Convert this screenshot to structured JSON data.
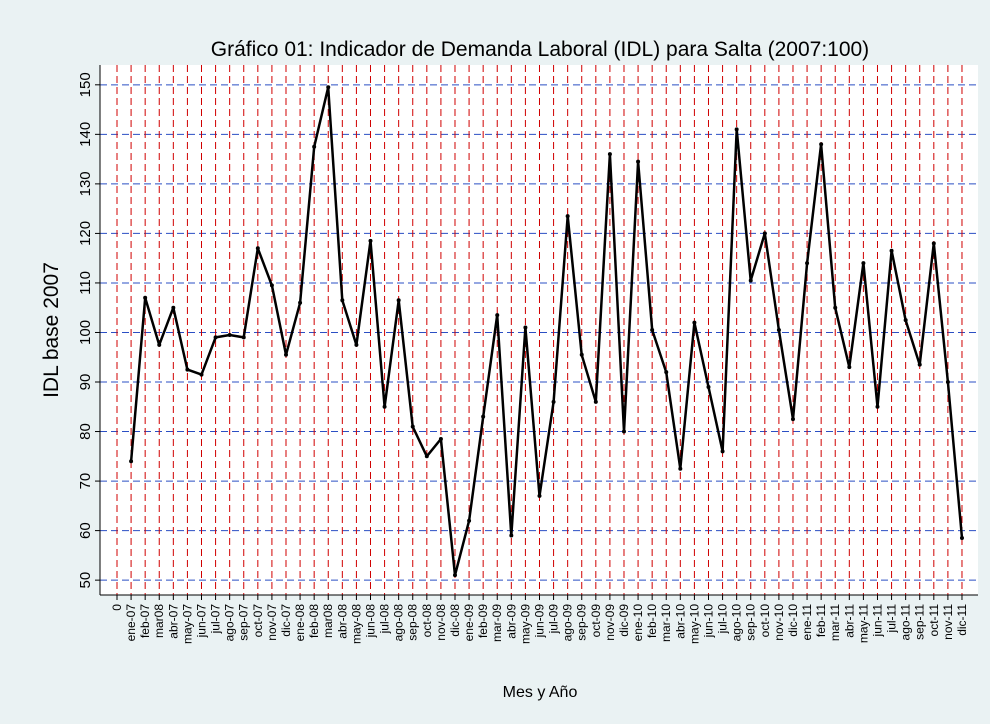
{
  "chart_data": {
    "type": "line",
    "title": "Gráfico 01: Indicador de Demanda Laboral (IDL) para Salta (2007:100)",
    "y_label": "IDL base 2007",
    "x_label": "Mes y Año",
    "categories": [
      "0",
      "ene-07",
      "feb-07",
      "mar08",
      "abr-07",
      "may-07",
      "jun-07",
      "jul-07",
      "ago-07",
      "sep-07",
      "oct-07",
      "nov-07",
      "dic-07",
      "ene-08",
      "feb-08",
      "mar08",
      "abr-08",
      "may-08",
      "jun-08",
      "jul-08",
      "ago-08",
      "sep-08",
      "oct-08",
      "nov-08",
      "dic-08",
      "ene-09",
      "feb-09",
      "mar-09",
      "abr-09",
      "may-09",
      "jun-09",
      "jul-09",
      "ago-09",
      "sep-09",
      "oct-09",
      "nov-09",
      "dic-09",
      "ene-10",
      "feb-10",
      "mar-10",
      "abr-10",
      "may-10",
      "jun-10",
      "jul-10",
      "ago-10",
      "sep-10",
      "oct-10",
      "nov-10",
      "dic-10",
      "ene-11",
      "feb-11",
      "mar-11",
      "abr-11",
      "may-11",
      "jun-11",
      "jul-11",
      "ago-11",
      "sep-11",
      "oct-11",
      "nov-11",
      "dic-11"
    ],
    "series": [
      {
        "name": "IDL",
        "color": "#000000",
        "values": [
          null,
          74,
          107,
          97.5,
          105,
          92.5,
          91.5,
          99,
          99.5,
          99,
          117,
          109.5,
          95.5,
          106,
          137.5,
          149.5,
          106.5,
          97.5,
          118.5,
          85,
          106.5,
          81,
          75,
          78.5,
          51,
          62,
          83,
          103.5,
          59,
          101,
          67,
          86,
          123.5,
          95.5,
          86,
          136,
          80,
          134.5,
          100.5,
          92,
          72.5,
          102,
          89,
          76,
          141,
          110.5,
          120,
          100.5,
          82.5,
          114,
          138,
          105,
          93,
          114,
          85,
          116.5,
          102.5,
          93.5,
          118,
          90,
          58.5
        ]
      }
    ],
    "ylim": [
      47,
      154
    ],
    "yticks": [
      50,
      60,
      70,
      80,
      90,
      100,
      110,
      120,
      130,
      140,
      150
    ],
    "grid": true
  }
}
